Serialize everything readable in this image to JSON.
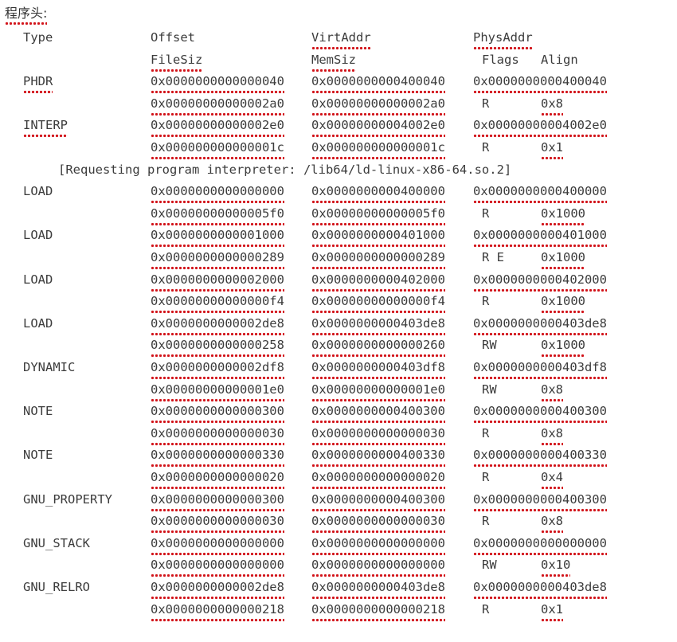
{
  "title": "程序头:",
  "header": {
    "row1": [
      "Type",
      "Offset",
      "VirtAddr",
      "PhysAddr"
    ],
    "row2": [
      "FileSiz",
      "MemSiz",
      "Flags",
      "Align"
    ]
  },
  "segments": [
    {
      "type": "PHDR",
      "offset": "0x0000000000000040",
      "virtaddr": "0x0000000000400040",
      "physaddr": "0x0000000000400040",
      "filesiz": "0x00000000000002a0",
      "memsiz": "0x00000000000002a0",
      "flags": "R",
      "align": "0x8"
    },
    {
      "type": "INTERP",
      "offset": "0x00000000000002e0",
      "virtaddr": "0x00000000004002e0",
      "physaddr": "0x00000000004002e0",
      "filesiz": "0x000000000000001c",
      "memsiz": "0x000000000000001c",
      "flags": "R",
      "align": "0x1",
      "note": "[Requesting program interpreter: /lib64/ld-linux-x86-64.so.2]"
    },
    {
      "type": "LOAD",
      "offset": "0x0000000000000000",
      "virtaddr": "0x0000000000400000",
      "physaddr": "0x0000000000400000",
      "filesiz": "0x00000000000005f0",
      "memsiz": "0x00000000000005f0",
      "flags": "R",
      "align": "0x1000"
    },
    {
      "type": "LOAD",
      "offset": "0x0000000000001000",
      "virtaddr": "0x0000000000401000",
      "physaddr": "0x0000000000401000",
      "filesiz": "0x0000000000000289",
      "memsiz": "0x0000000000000289",
      "flags": "R E",
      "align": "0x1000"
    },
    {
      "type": "LOAD",
      "offset": "0x0000000000002000",
      "virtaddr": "0x0000000000402000",
      "physaddr": "0x0000000000402000",
      "filesiz": "0x00000000000000f4",
      "memsiz": "0x00000000000000f4",
      "flags": "R",
      "align": "0x1000"
    },
    {
      "type": "LOAD",
      "offset": "0x0000000000002de8",
      "virtaddr": "0x0000000000403de8",
      "physaddr": "0x0000000000403de8",
      "filesiz": "0x0000000000000258",
      "memsiz": "0x0000000000000260",
      "flags": "RW",
      "align": "0x1000"
    },
    {
      "type": "DYNAMIC",
      "offset": "0x0000000000002df8",
      "virtaddr": "0x0000000000403df8",
      "physaddr": "0x0000000000403df8",
      "filesiz": "0x00000000000001e0",
      "memsiz": "0x00000000000001e0",
      "flags": "RW",
      "align": "0x8"
    },
    {
      "type": "NOTE",
      "offset": "0x0000000000000300",
      "virtaddr": "0x0000000000400300",
      "physaddr": "0x0000000000400300",
      "filesiz": "0x0000000000000030",
      "memsiz": "0x0000000000000030",
      "flags": "R",
      "align": "0x8"
    },
    {
      "type": "NOTE",
      "offset": "0x0000000000000330",
      "virtaddr": "0x0000000000400330",
      "physaddr": "0x0000000000400330",
      "filesiz": "0x0000000000000020",
      "memsiz": "0x0000000000000020",
      "flags": "R",
      "align": "0x4"
    },
    {
      "type": "GNU_PROPERTY",
      "offset": "0x0000000000000300",
      "virtaddr": "0x0000000000400300",
      "physaddr": "0x0000000000400300",
      "filesiz": "0x0000000000000030",
      "memsiz": "0x0000000000000030",
      "flags": "R",
      "align": "0x8"
    },
    {
      "type": "GNU_STACK",
      "offset": "0x0000000000000000",
      "virtaddr": "0x0000000000000000",
      "physaddr": "0x0000000000000000",
      "filesiz": "0x0000000000000000",
      "memsiz": "0x0000000000000000",
      "flags": "RW",
      "align": "0x10"
    },
    {
      "type": "GNU_RELRO",
      "offset": "0x0000000000002de8",
      "virtaddr": "0x0000000000403de8",
      "physaddr": "0x0000000000403de8",
      "filesiz": "0x0000000000000218",
      "memsiz": "0x0000000000000218",
      "flags": "R",
      "align": "0x1"
    }
  ],
  "colors": {
    "text": "#3c3c3c",
    "spellcheck_underline": "#d2141a",
    "background": "#ffffff"
  }
}
